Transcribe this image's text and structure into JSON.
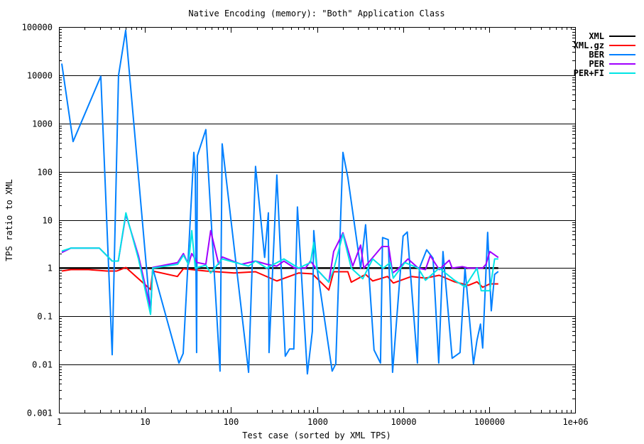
{
  "chart_data": {
    "type": "line",
    "title": "Native Encoding (memory): \"Both\" Application Class",
    "xlabel": "Test case (sorted by XML TPS)",
    "ylabel": "TPS ratio to XML",
    "xscale": "log",
    "yscale": "log",
    "xlim": [
      1,
      1000000
    ],
    "ylim": [
      0.001,
      100000
    ],
    "x_ticks": [
      1,
      10,
      100,
      1000,
      10000,
      100000,
      1000000
    ],
    "x_tick_labels": [
      "1",
      "10",
      "100",
      "1000",
      "10000",
      "100000",
      "1e+06"
    ],
    "y_ticks": [
      0.001,
      0.01,
      0.1,
      1,
      10,
      100,
      1000,
      10000,
      100000
    ],
    "y_tick_labels": [
      "0.001",
      "0.01",
      "0.1",
      "1",
      "10",
      "100",
      "1000",
      "10000",
      "100000"
    ],
    "grid": "horizontal major",
    "legend_position": "right-outside-top",
    "series": [
      {
        "name": "XML",
        "color": "#000000",
        "points": [
          [
            1,
            1
          ],
          [
            128000,
            1
          ]
        ]
      },
      {
        "name": "XML.gz",
        "color": "#ff0000",
        "points": [
          [
            1.08,
            0.87
          ],
          [
            1.38,
            0.93
          ],
          [
            2.2,
            0.93
          ],
          [
            3.6,
            0.87
          ],
          [
            4.7,
            0.87
          ],
          [
            6,
            1.03
          ],
          [
            8.4,
            0.6
          ],
          [
            11.6,
            0.36
          ],
          [
            12.3,
            0.87
          ],
          [
            23.8,
            0.67
          ],
          [
            28,
            0.97
          ],
          [
            51,
            0.87
          ],
          [
            68,
            0.84
          ],
          [
            109,
            0.79
          ],
          [
            193,
            0.84
          ],
          [
            341,
            0.54
          ],
          [
            610,
            0.79
          ],
          [
            882,
            0.76
          ],
          [
            1370,
            0.35
          ],
          [
            1560,
            0.84
          ],
          [
            2280,
            0.84
          ],
          [
            2500,
            0.51
          ],
          [
            3670,
            0.74
          ],
          [
            4440,
            0.54
          ],
          [
            6600,
            0.67
          ],
          [
            7700,
            0.49
          ],
          [
            12500,
            0.67
          ],
          [
            18200,
            0.62
          ],
          [
            26300,
            0.71
          ],
          [
            39600,
            0.52
          ],
          [
            57700,
            0.44
          ],
          [
            72400,
            0.52
          ],
          [
            84300,
            0.4
          ],
          [
            102000,
            0.47
          ],
          [
            128000,
            0.47
          ]
        ]
      },
      {
        "name": "BER",
        "color": "#0080ff",
        "points": [
          [
            1.08,
            17400
          ],
          [
            1.46,
            420
          ],
          [
            3.07,
            9500
          ],
          [
            4.16,
            0.016
          ],
          [
            4.93,
            9800
          ],
          [
            5.97,
            85000
          ],
          [
            11.6,
            0.11
          ],
          [
            12.3,
            1
          ],
          [
            24.8,
            0.0107
          ],
          [
            27.8,
            0.017
          ],
          [
            37,
            251
          ],
          [
            38.4,
            98
          ],
          [
            39.8,
            0.0177
          ],
          [
            40.6,
            213
          ],
          [
            51,
            745
          ],
          [
            74.6,
            0.0073
          ],
          [
            79,
            377
          ],
          [
            160,
            0.0069
          ],
          [
            193,
            128
          ],
          [
            246,
            1.66
          ],
          [
            272,
            14
          ],
          [
            277,
            0.0177
          ],
          [
            341,
            85
          ],
          [
            428,
            0.0149
          ],
          [
            479,
            0.021
          ],
          [
            537,
            0.021
          ],
          [
            592,
            18.5
          ],
          [
            772,
            0.0064
          ],
          [
            882,
            0.049
          ],
          [
            916,
            6
          ],
          [
            1000,
            1
          ],
          [
            1500,
            0.0073
          ],
          [
            1650,
            0.0103
          ],
          [
            1890,
            14
          ],
          [
            2000,
            251
          ],
          [
            2280,
            76
          ],
          [
            3210,
            1
          ],
          [
            3670,
            7.9
          ],
          [
            4600,
            0.02
          ],
          [
            5470,
            0.0107
          ],
          [
            5780,
            4.3
          ],
          [
            6730,
            3.9
          ],
          [
            7550,
            0.0069
          ],
          [
            10000,
            4.6
          ],
          [
            11200,
            5.6
          ],
          [
            14700,
            0.0107
          ],
          [
            15500,
            1
          ],
          [
            18800,
            2.4
          ],
          [
            22300,
            1.6
          ],
          [
            26000,
            0.0107
          ],
          [
            29100,
            2.2
          ],
          [
            37200,
            0.0135
          ],
          [
            45900,
            0.0177
          ],
          [
            52500,
            1
          ],
          [
            65800,
            0.0103
          ],
          [
            72400,
            0.032
          ],
          [
            79400,
            0.069
          ],
          [
            84300,
            0.022
          ],
          [
            96200,
            5.5
          ],
          [
            106000,
            0.13
          ],
          [
            116000,
            0.74
          ],
          [
            128000,
            0.85
          ]
        ]
      },
      {
        "name": "PER",
        "color": "#a000ff",
        "points": [
          [
            1.08,
            2.1
          ],
          [
            1.38,
            2.6
          ],
          [
            2.95,
            2.6
          ],
          [
            4.16,
            1.4
          ],
          [
            4.9,
            1.4
          ],
          [
            6,
            13
          ],
          [
            8.4,
            1.8
          ],
          [
            11.6,
            0.145
          ],
          [
            12.3,
            1.03
          ],
          [
            24,
            1.3
          ],
          [
            28,
            2
          ],
          [
            32,
            1.2
          ],
          [
            35,
            2
          ],
          [
            40.6,
            1.3
          ],
          [
            51,
            1.2
          ],
          [
            58,
            6
          ],
          [
            72,
            1.2
          ],
          [
            79,
            1.7
          ],
          [
            132,
            1.2
          ],
          [
            193,
            1.4
          ],
          [
            260,
            1.2
          ],
          [
            341,
            1.1
          ],
          [
            412,
            1.4
          ],
          [
            550,
            1
          ],
          [
            733,
            1
          ],
          [
            840,
            1.4
          ],
          [
            1000,
            0.93
          ],
          [
            1370,
            0.51
          ],
          [
            1560,
            2.2
          ],
          [
            2000,
            5.4
          ],
          [
            2600,
            1.1
          ],
          [
            3210,
            3
          ],
          [
            3500,
            1
          ],
          [
            5700,
            2.8
          ],
          [
            6800,
            2.8
          ],
          [
            7550,
            0.79
          ],
          [
            8600,
            0.93
          ],
          [
            11400,
            1.55
          ],
          [
            15000,
            1
          ],
          [
            18200,
            0.93
          ],
          [
            20700,
            1.8
          ],
          [
            26300,
            0.93
          ],
          [
            34400,
            1.45
          ],
          [
            37200,
            1
          ],
          [
            48800,
            1.07
          ],
          [
            57700,
            1
          ],
          [
            84300,
            1
          ],
          [
            92000,
            1.2
          ],
          [
            102000,
            2.2
          ],
          [
            128000,
            1.66
          ]
        ]
      },
      {
        "name": "PER+FI",
        "color": "#00e5e5",
        "points": [
          [
            1.08,
            2.25
          ],
          [
            1.38,
            2.6
          ],
          [
            2.95,
            2.6
          ],
          [
            4.16,
            1.4
          ],
          [
            4.9,
            1.4
          ],
          [
            6,
            14
          ],
          [
            8.4,
            1.55
          ],
          [
            11.6,
            0.11
          ],
          [
            12.3,
            1
          ],
          [
            24,
            1.2
          ],
          [
            28,
            1.85
          ],
          [
            32,
            1.2
          ],
          [
            35,
            6
          ],
          [
            38.4,
            1
          ],
          [
            51,
            1.15
          ],
          [
            58,
            0.79
          ],
          [
            79,
            1.55
          ],
          [
            160,
            1.1
          ],
          [
            193,
            1.4
          ],
          [
            260,
            1
          ],
          [
            412,
            1.55
          ],
          [
            610,
            1
          ],
          [
            840,
            1.3
          ],
          [
            916,
            3.4
          ],
          [
            1000,
            0.93
          ],
          [
            1370,
            0.51
          ],
          [
            1560,
            0.93
          ],
          [
            2000,
            5.1
          ],
          [
            2500,
            1
          ],
          [
            3400,
            0.6
          ],
          [
            4440,
            1.55
          ],
          [
            5900,
            1
          ],
          [
            7100,
            1.3
          ],
          [
            7700,
            0.62
          ],
          [
            10500,
            1.3
          ],
          [
            15000,
            1
          ],
          [
            18200,
            0.56
          ],
          [
            26300,
            1
          ],
          [
            39600,
            0.56
          ],
          [
            52500,
            0.41
          ],
          [
            72400,
            1
          ],
          [
            81000,
            0.34
          ],
          [
            102000,
            0.34
          ],
          [
            116000,
            1.55
          ],
          [
            128000,
            1.55
          ]
        ]
      }
    ]
  }
}
